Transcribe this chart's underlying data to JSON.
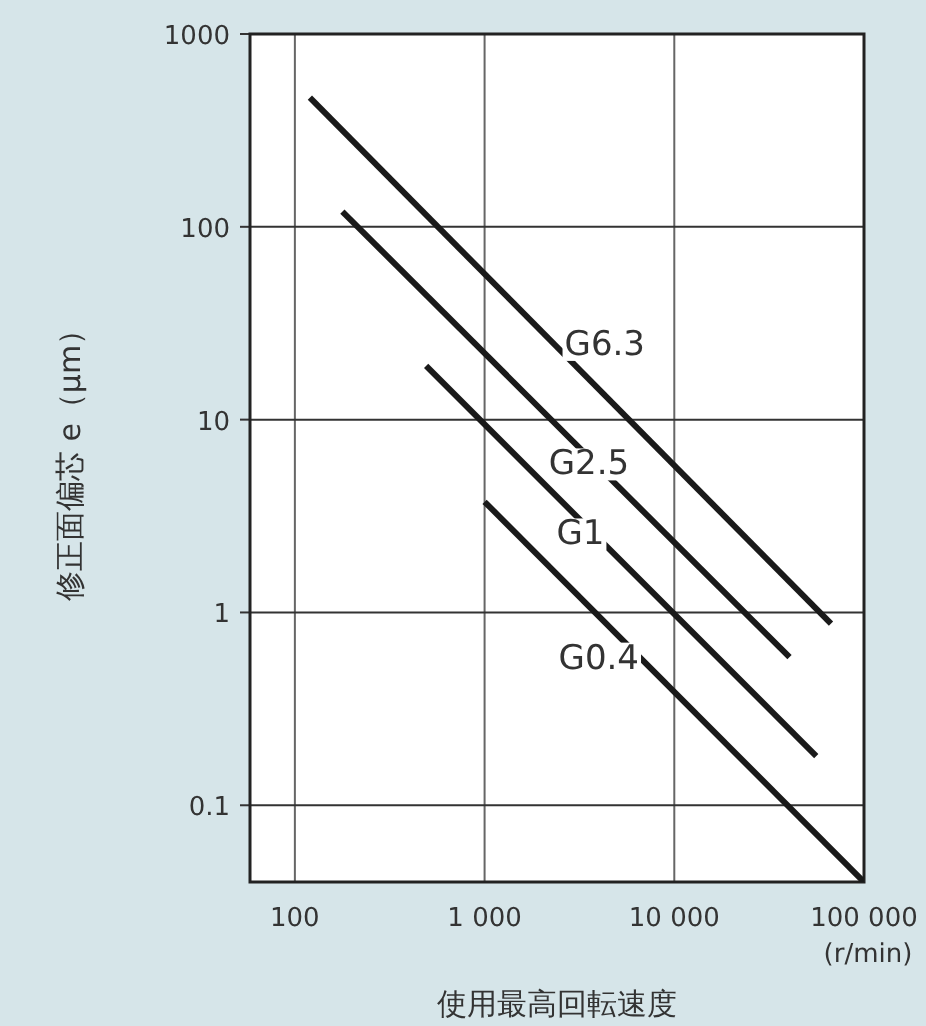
{
  "chart_data": {
    "type": "line",
    "xlabel": "使用最高回転速度",
    "ylabel": "修正面偏芯 e（μm）",
    "log": "xy",
    "grid": true,
    "marker": "none",
    "line_style": "solid",
    "xlim": [
      58,
      100000
    ],
    "ylim": [
      0.04,
      1000
    ],
    "xticks": [
      100,
      {
        "value": 1000,
        "label": "1 000"
      },
      {
        "value": 10000,
        "label": "10 000"
      },
      {
        "value": 100000,
        "label": "100 000"
      }
    ],
    "yticks": [
      0.1,
      1,
      10,
      100,
      1000
    ],
    "series": [
      {
        "color": "#1a1a1a",
        "x": [
          120,
          67000
        ],
        "values": [
          468,
          0.875
        ]
      },
      {
        "color": "#1a1a1a",
        "x": [
          178,
          40500
        ],
        "values": [
          120,
          0.586
        ]
      },
      {
        "color": "#1a1a1a",
        "x": [
          492,
          56000
        ],
        "values": [
          19,
          0.18
        ]
      },
      {
        "color": "#1a1a1a",
        "x": [
          1000,
          100000
        ],
        "values": [
          3.75,
          0.04
        ]
      }
    ],
    "annotations": [
      {
        "text": "G6.3",
        "x": 4300,
        "y": 25
      },
      {
        "text": "G2.5",
        "x": 3550,
        "y": 6.0
      },
      {
        "text": "G1",
        "x": 3200,
        "y": 2.6
      },
      {
        "text": "G0.4",
        "x": 4000,
        "y": 0.59
      },
      "(r/min)"
    ]
  }
}
